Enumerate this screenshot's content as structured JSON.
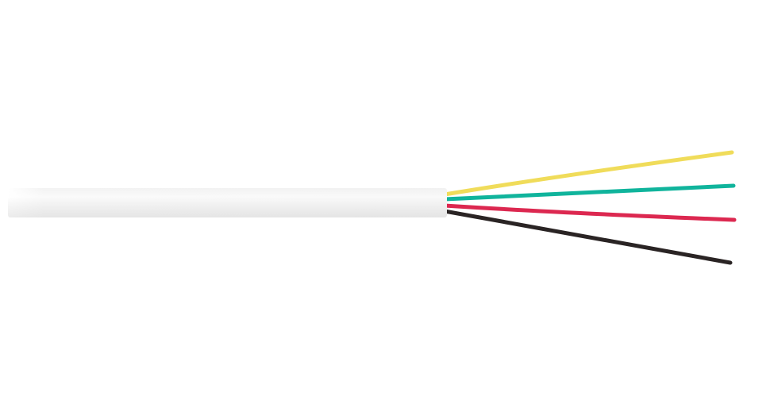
{
  "image": {
    "subject": "cable",
    "background_color": "#ffffff",
    "jacket_color": "#f4f4f4",
    "wires": [
      {
        "name": "yellow",
        "color": "#f0dc5a"
      },
      {
        "name": "green",
        "color": "#10b49c"
      },
      {
        "name": "red",
        "color": "#dc2850"
      },
      {
        "name": "black",
        "color": "#2a2424"
      }
    ]
  }
}
